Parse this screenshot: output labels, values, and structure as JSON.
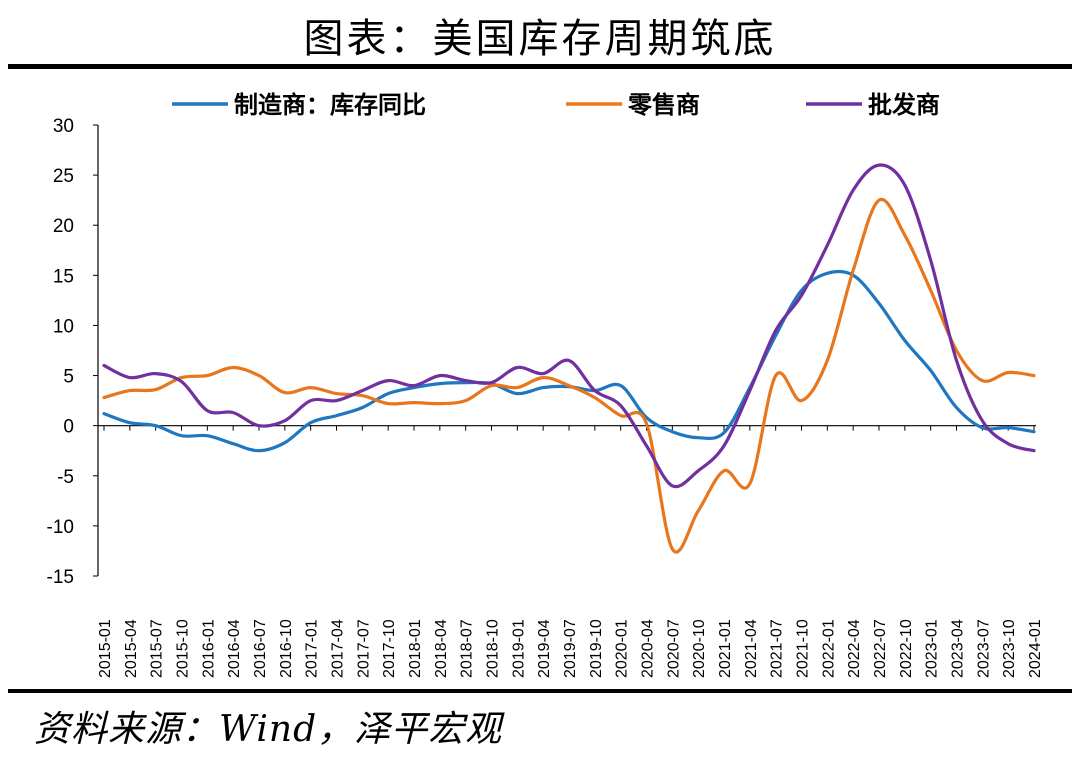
{
  "header": {
    "title": "图表：美国库存周期筑底"
  },
  "footer": {
    "source": "资料来源：Wind，泽平宏观"
  },
  "chart_data": {
    "type": "line",
    "xlabel": "",
    "ylabel": "",
    "ylim": [
      -15,
      30
    ],
    "yticks": [
      "30",
      "25",
      "20",
      "15",
      "10",
      "5",
      "0",
      "-5",
      "-10",
      "-15"
    ],
    "grid": false,
    "legend_position": "top",
    "x": [
      "2015-01",
      "2015-04",
      "2015-07",
      "2015-10",
      "2016-01",
      "2016-04",
      "2016-07",
      "2016-10",
      "2017-01",
      "2017-04",
      "2017-07",
      "2017-10",
      "2018-01",
      "2018-04",
      "2018-07",
      "2018-10",
      "2019-01",
      "2019-04",
      "2019-07",
      "2019-10",
      "2020-01",
      "2020-04",
      "2020-07",
      "2020-10",
      "2021-01",
      "2021-04",
      "2021-07",
      "2021-10",
      "2022-01",
      "2022-04",
      "2022-07",
      "2022-10",
      "2023-01",
      "2023-04",
      "2023-07",
      "2023-10",
      "2024-01"
    ],
    "series": [
      {
        "name": "制造商：库存同比",
        "color": "#1f77c0",
        "values": [
          1.2,
          0.3,
          0.0,
          -1.0,
          -1.0,
          -1.8,
          -2.5,
          -1.7,
          0.3,
          1.0,
          1.8,
          3.2,
          3.8,
          4.2,
          4.3,
          4.2,
          3.2,
          3.8,
          3.9,
          3.5,
          4.0,
          0.8,
          -0.6,
          -1.2,
          -0.7,
          3.8,
          9.0,
          13.5,
          15.2,
          15.0,
          12.2,
          8.5,
          5.5,
          1.8,
          -0.2,
          -0.2,
          -0.6
        ]
      },
      {
        "name": "零售商",
        "color": "#e8761c",
        "values": [
          2.8,
          3.5,
          3.6,
          4.8,
          5.0,
          5.8,
          5.0,
          3.3,
          3.8,
          3.2,
          3.0,
          2.2,
          2.3,
          2.2,
          2.5,
          4.0,
          3.8,
          4.8,
          4.0,
          2.8,
          1.0,
          0.2,
          -12.3,
          -8.5,
          -4.5,
          -5.8,
          5.0,
          2.5,
          6.5,
          15.5,
          22.5,
          19.0,
          13.5,
          7.5,
          4.5,
          5.3,
          5.0
        ]
      },
      {
        "name": "批发商",
        "color": "#7030a0",
        "values": [
          6.0,
          4.8,
          5.2,
          4.4,
          1.5,
          1.3,
          0.0,
          0.5,
          2.5,
          2.5,
          3.5,
          4.5,
          4.0,
          5.0,
          4.5,
          4.3,
          5.8,
          5.2,
          6.5,
          3.5,
          2.0,
          -2.0,
          -6.0,
          -4.5,
          -2.0,
          3.5,
          9.5,
          13.0,
          18.0,
          23.5,
          26.0,
          24.0,
          16.5,
          6.5,
          0.5,
          -1.8,
          -2.5
        ]
      }
    ]
  }
}
